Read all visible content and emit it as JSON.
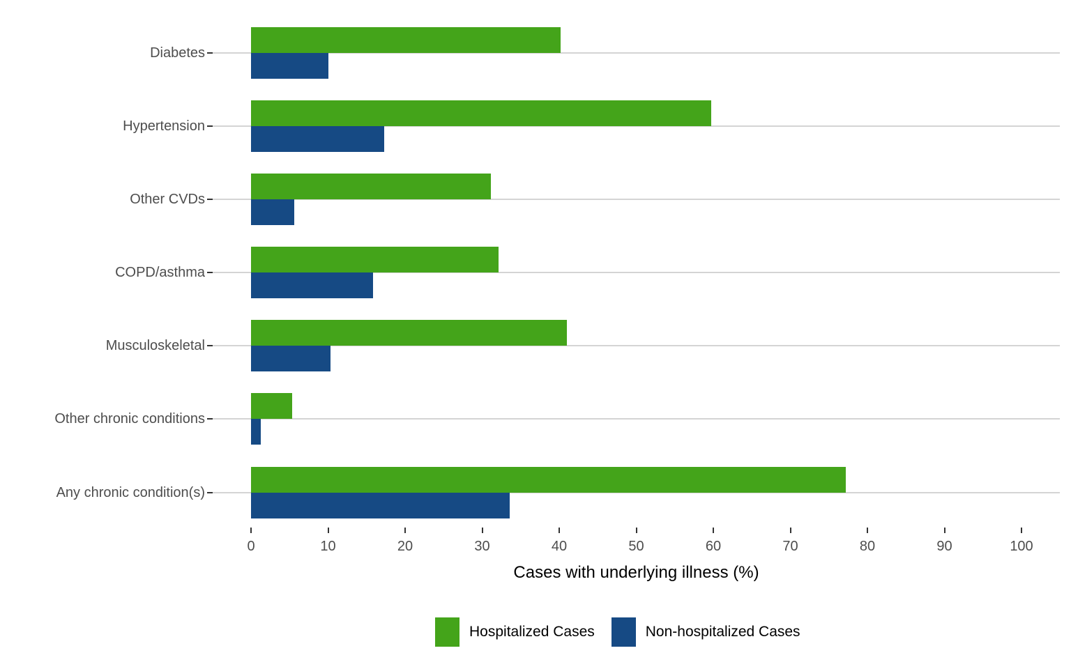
{
  "chart_data": {
    "type": "bar",
    "orientation": "horizontal",
    "title": "",
    "xlabel": "Cases with underlying illness (%)",
    "ylabel": "",
    "xlim": [
      0,
      100
    ],
    "x_ticks": [
      0,
      10,
      20,
      30,
      40,
      50,
      60,
      70,
      80,
      90,
      100
    ],
    "grid": "horizontal category gridlines only",
    "legend_position": "bottom",
    "categories": [
      "Diabetes",
      "Hypertension",
      "Other CVDs",
      "COPD/asthma",
      "Musculoskeletal",
      "Other chronic conditions",
      "Any chronic condition(s)"
    ],
    "series": [
      {
        "name": "Hospitalized Cases",
        "color": "#44a41a",
        "values": [
          40.2,
          59.7,
          31.1,
          32.1,
          41.0,
          5.3,
          77.2
        ]
      },
      {
        "name": "Non-hospitalized Cases",
        "color": "#164a84",
        "values": [
          10.0,
          17.3,
          5.6,
          15.8,
          10.3,
          1.3,
          33.6
        ]
      }
    ]
  },
  "styles": {
    "background": "#ffffff",
    "grid_color": "#d4d4d4",
    "tick_color": "#333333",
    "axis_text_color": "#4d4d4d"
  }
}
